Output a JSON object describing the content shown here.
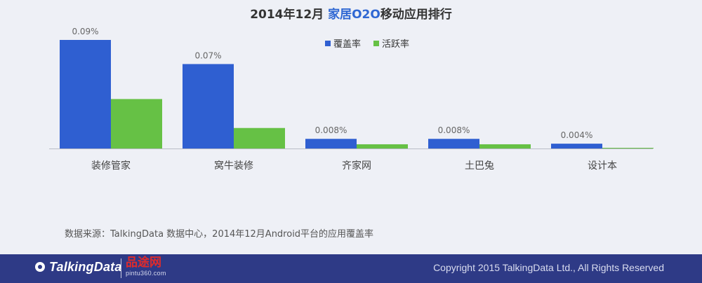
{
  "title": {
    "prefix": "2014年12月 ",
    "highlight": "家居O2O",
    "suffix": "移动应用排行"
  },
  "colors": {
    "coverage": "#2f5fd1",
    "active": "#66c145",
    "title_highlight": "#2f67d3",
    "footer_bg": "#2e3a86"
  },
  "chart_data": {
    "type": "bar",
    "categories": [
      "装修管家",
      "窝牛装修",
      "齐家网",
      "土巴兔",
      "设计本"
    ],
    "series": [
      {
        "name": "覆盖率",
        "values": [
          0.09,
          0.07,
          0.008,
          0.008,
          0.004
        ],
        "labels": [
          "0.09%",
          "0.07%",
          "0.008%",
          "0.008%",
          "0.004%"
        ]
      },
      {
        "name": "活跃率",
        "values": [
          0.041,
          0.017,
          0.0035,
          0.0035,
          0.0003
        ]
      }
    ],
    "unit": "%",
    "ylim": [
      0,
      0.09
    ],
    "grid": false,
    "legend_position": "top-center"
  },
  "source": "数据来源：TalkingData 数据中心，2014年12月Android平台的应用覆盖率",
  "footer": {
    "brand": "TalkingData",
    "partner": "品途网",
    "partner_sub": "pintu360.com",
    "copyright": "Copyright 2015 TalkingData Ltd., All Rights Reserved"
  }
}
